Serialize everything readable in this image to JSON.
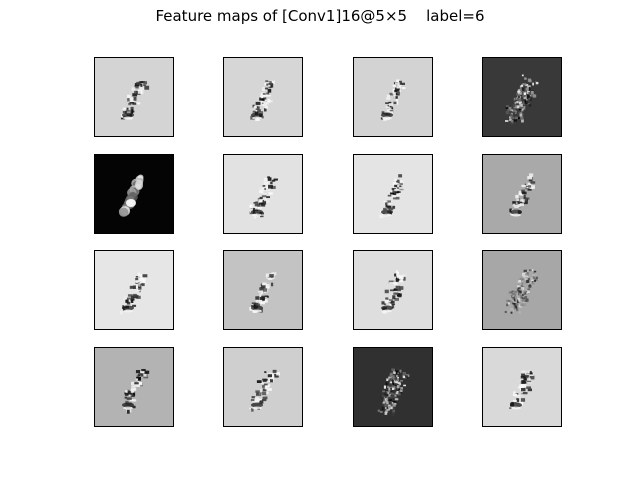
{
  "figure": {
    "title": "Feature maps of [Conv1]16@5×5    label=6"
  },
  "feature_maps": {
    "rows": 4,
    "cols": 4,
    "maps": [
      {
        "background": "#d4d4d4",
        "kind": "edge"
      },
      {
        "background": "#d6d6d6",
        "kind": "edge"
      },
      {
        "background": "#d3d3d3",
        "kind": "edge"
      },
      {
        "background": "#393939",
        "kind": "dark-noise"
      },
      {
        "background": "#040404",
        "kind": "glow"
      },
      {
        "background": "#e2e2e2",
        "kind": "edge"
      },
      {
        "background": "#e4e4e4",
        "kind": "edge"
      },
      {
        "background": "#a9a9a9",
        "kind": "edge"
      },
      {
        "background": "#e6e6e6",
        "kind": "edge"
      },
      {
        "background": "#c3c3c3",
        "kind": "edge"
      },
      {
        "background": "#dedede",
        "kind": "edge"
      },
      {
        "background": "#a7a7a7",
        "kind": "noise"
      },
      {
        "background": "#b3b3b3",
        "kind": "edge"
      },
      {
        "background": "#cfcfcf",
        "kind": "edge"
      },
      {
        "background": "#303030",
        "kind": "dark-noise"
      },
      {
        "background": "#d9d9d9",
        "kind": "edge"
      }
    ]
  }
}
